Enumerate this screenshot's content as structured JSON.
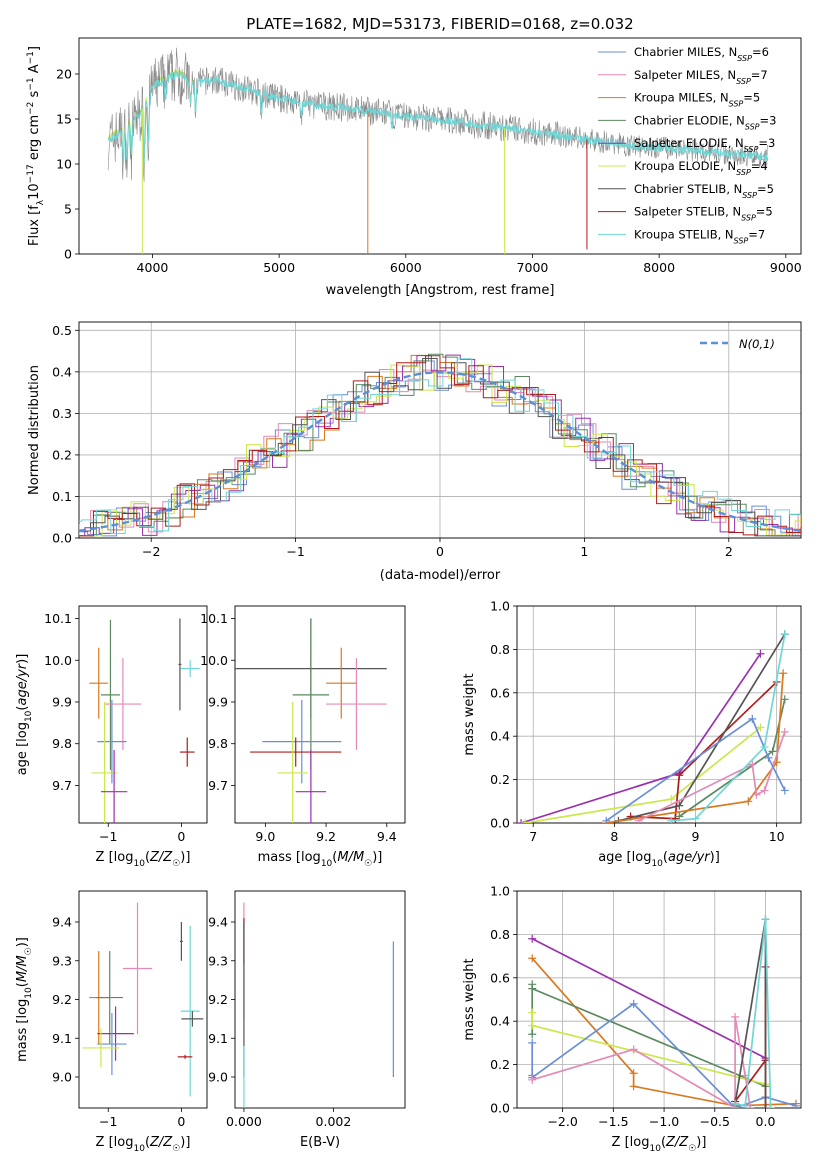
{
  "title": "PLATE=1682, MJD=53173, FIBERID=0168, z=0.032",
  "colors": {
    "Chabrier MILES": "#6a8fd6",
    "Salpeter MILES": "#e58ab6",
    "Kroupa MILES": "#d9781f",
    "Chabrier ELODIE": "#5b8a60",
    "Salpeter ELODIE": "#9b2fb0",
    "Kroupa ELODIE": "#cbe84b",
    "Chabrier STELIB": "#555555",
    "Salpeter STELIB": "#b01c1c",
    "Kroupa STELIB": "#6fd6d6",
    "fit": "#888888"
  },
  "chart_data": [
    {
      "id": "spectrum",
      "type": "line",
      "xlabel": "wavelength [Angstrom, rest frame]",
      "ylabel": "Flux [f_λ10^-17 erg cm^-2 s^-1 A^-1]",
      "xlim": [
        3420,
        9120
      ],
      "ylim": [
        0,
        24
      ],
      "xticks": [
        4000,
        5000,
        6000,
        7000,
        8000,
        9000
      ],
      "yticks": [
        0,
        5,
        10,
        15,
        20
      ],
      "grid": false,
      "legend": "upper right",
      "legend_entries": [
        {
          "name": "Chabrier MILES",
          "n_ssp": 6
        },
        {
          "name": "Salpeter MILES",
          "n_ssp": 7
        },
        {
          "name": "Kroupa MILES",
          "n_ssp": 5
        },
        {
          "name": "Chabrier ELODIE",
          "n_ssp": 3
        },
        {
          "name": "Salpeter ELODIE",
          "n_ssp": 3
        },
        {
          "name": "Kroupa ELODIE",
          "n_ssp": 4
        },
        {
          "name": "Chabrier STELIB",
          "n_ssp": 5
        },
        {
          "name": "Salpeter STELIB",
          "n_ssp": 5
        },
        {
          "name": "Kroupa STELIB",
          "n_ssp": 7
        }
      ],
      "continuum": [
        [
          3650,
          12.5
        ],
        [
          3750,
          13.5
        ],
        [
          3900,
          15.5
        ],
        [
          4000,
          18.5
        ],
        [
          4100,
          19.5
        ],
        [
          4200,
          20
        ],
        [
          4300,
          19
        ],
        [
          4500,
          19.3
        ],
        [
          4700,
          18.5
        ],
        [
          5000,
          17.3
        ],
        [
          5300,
          16.5
        ],
        [
          5500,
          16.3
        ],
        [
          5800,
          15.7
        ],
        [
          6000,
          15.3
        ],
        [
          6300,
          14.9
        ],
        [
          6600,
          14.3
        ],
        [
          7000,
          13.6
        ],
        [
          7400,
          12.8
        ],
        [
          7800,
          12
        ],
        [
          8200,
          11.6
        ],
        [
          8600,
          11.1
        ],
        [
          8850,
          10.8
        ]
      ],
      "spikes": [
        {
          "x": 3920,
          "y": 0,
          "series": "Kroupa ELODIE"
        },
        {
          "x": 5700,
          "y": 0,
          "series": "Kroupa MILES"
        },
        {
          "x": 6780,
          "y": 0,
          "series": "Kroupa ELODIE"
        },
        {
          "x": 7430,
          "y": 0.5,
          "series": "Salpeter STELIB"
        }
      ]
    },
    {
      "id": "residuals",
      "type": "histogram",
      "xlabel": "(data-model)/error",
      "ylabel": "Normed distribution",
      "xlim": [
        -2.5,
        2.5
      ],
      "ylim": [
        0,
        0.52
      ],
      "xticks": [
        -2,
        -1,
        0,
        1,
        2
      ],
      "yticks": [
        0,
        0.1,
        0.2,
        0.3,
        0.4,
        0.5
      ],
      "grid": true,
      "legend": "upper right",
      "reference_label": "N(0,1)",
      "bin_width": 0.1
    },
    {
      "id": "age_vs_Z",
      "type": "errorbar",
      "xlabel": "Z [log10(Z/Z☉)]",
      "ylabel": "age [log10(age/yr)]",
      "xlim": [
        -1.4,
        0.35
      ],
      "ylim": [
        9.61,
        10.13
      ],
      "xticks": [
        -1,
        0
      ],
      "yticks": [
        9.7,
        9.8,
        9.9,
        10.0,
        10.1
      ],
      "points": [
        {
          "series": "Kroupa MILES",
          "x": -1.13,
          "xerr": 0.13,
          "y": 9.945,
          "yerr": 0.085
        },
        {
          "series": "Chabrier ELODIE",
          "x": -0.97,
          "xerr": 0.13,
          "y": 9.917,
          "yerr": 0.18
        },
        {
          "series": "Salpeter MILES",
          "x": -0.8,
          "xerr": 0.25,
          "y": 9.895,
          "yerr": 0.11
        },
        {
          "series": "Chabrier MILES",
          "x": -0.95,
          "xerr": 0.2,
          "y": 9.805,
          "yerr": 0.1
        },
        {
          "series": "Kroupa ELODIE",
          "x": -1.05,
          "xerr": 0.18,
          "y": 9.73,
          "yerr": 0.17
        },
        {
          "series": "Salpeter ELODIE",
          "x": -0.92,
          "xerr": 0.18,
          "y": 9.685,
          "yerr": 0.1
        },
        {
          "series": "Chabrier STELIB",
          "x": -0.02,
          "xerr": 0.02,
          "y": 9.99,
          "yerr": 0.11
        },
        {
          "series": "Kroupa STELIB",
          "x": 0.12,
          "xerr": 0.13,
          "y": 9.98,
          "yerr": 0.02
        },
        {
          "series": "Salpeter STELIB",
          "x": 0.08,
          "xerr": 0.1,
          "y": 9.78,
          "yerr": 0.035
        }
      ]
    },
    {
      "id": "age_vs_mass",
      "type": "errorbar",
      "xlabel": "mass [log10(M/M☉)]",
      "ylabel": "",
      "xlim": [
        8.9,
        9.46
      ],
      "ylim": [
        9.61,
        10.13
      ],
      "xticks": [
        9.0,
        9.2,
        9.4
      ],
      "yticks": [
        9.7,
        9.8,
        9.9,
        10.0,
        10.1
      ],
      "points": [
        {
          "series": "Chabrier STELIB",
          "x": 9.15,
          "xerr": 0.25,
          "y": 9.98,
          "yerr": 0.12
        },
        {
          "series": "Kroupa MILES",
          "x": 9.25,
          "xerr": 0.05,
          "y": 9.945,
          "yerr": 0.085
        },
        {
          "series": "Chabrier ELODIE",
          "x": 9.15,
          "xerr": 0.06,
          "y": 9.917,
          "yerr": 0.18
        },
        {
          "series": "Salpeter MILES",
          "x": 9.3,
          "xerr": 0.1,
          "y": 9.895,
          "yerr": 0.11
        },
        {
          "series": "Chabrier MILES",
          "x": 9.12,
          "xerr": 0.13,
          "y": 9.805,
          "yerr": 0.1
        },
        {
          "series": "Salpeter STELIB",
          "x": 9.1,
          "xerr": 0.15,
          "y": 9.78,
          "yerr": 0.035
        },
        {
          "series": "Kroupa ELODIE",
          "x": 9.09,
          "xerr": 0.05,
          "y": 9.73,
          "yerr": 0.17
        },
        {
          "series": "Salpeter ELODIE",
          "x": 9.15,
          "xerr": 0.05,
          "y": 9.685,
          "yerr": 0.1
        }
      ]
    },
    {
      "id": "mass_weight_vs_age",
      "type": "line",
      "xlabel": "age [log10(age/yr)]",
      "ylabel": "mass weight",
      "xlim": [
        6.8,
        10.3
      ],
      "ylim": [
        0,
        1
      ],
      "xticks": [
        7,
        8,
        9,
        10
      ],
      "yticks": [
        0,
        0.2,
        0.4,
        0.6,
        0.8,
        1.0
      ],
      "grid": true,
      "series": [
        {
          "name": "Salpeter ELODIE",
          "points": [
            [
              6.85,
              0
            ],
            [
              8.8,
              0.23
            ],
            [
              9.8,
              0.78
            ]
          ]
        },
        {
          "name": "Kroupa ELODIE",
          "points": [
            [
              6.9,
              0
            ],
            [
              8.7,
              0.11
            ],
            [
              9.8,
              0.44
            ]
          ]
        },
        {
          "name": "Salpeter STELIB",
          "points": [
            [
              8.2,
              0.03
            ],
            [
              8.75,
              0.02
            ],
            [
              8.8,
              0.22
            ],
            [
              10,
              0.65
            ]
          ]
        },
        {
          "name": "Chabrier STELIB",
          "points": [
            [
              8.05,
              0.01
            ],
            [
              8.8,
              0.08
            ],
            [
              10.1,
              0.87
            ]
          ]
        },
        {
          "name": "Chabrier ELODIE",
          "points": [
            [
              8.8,
              0.03
            ],
            [
              9.95,
              0.33
            ],
            [
              10.1,
              0.57
            ]
          ]
        },
        {
          "name": "Kroupa MILES",
          "points": [
            [
              7.9,
              0
            ],
            [
              9.65,
              0.1
            ],
            [
              10,
              0.28
            ],
            [
              10.08,
              0.69
            ]
          ]
        },
        {
          "name": "Salpeter MILES",
          "points": [
            [
              8.3,
              0.01
            ],
            [
              9.7,
              0.27
            ],
            [
              9.75,
              0.13
            ],
            [
              9.85,
              0.15
            ],
            [
              10.1,
              0.42
            ]
          ]
        },
        {
          "name": "Chabrier MILES",
          "points": [
            [
              7.9,
              0.01
            ],
            [
              9.7,
              0.48
            ],
            [
              9.9,
              0.3
            ],
            [
              10.1,
              0.15
            ]
          ]
        },
        {
          "name": "Kroupa STELIB",
          "points": [
            [
              8.7,
              0.01
            ],
            [
              9.0,
              0.02
            ],
            [
              9.85,
              0.35
            ],
            [
              10.1,
              0.87
            ]
          ]
        }
      ]
    },
    {
      "id": "mass_vs_Z",
      "type": "errorbar",
      "xlabel": "Z [log10(Z/Z☉)]",
      "ylabel": "mass [log10(M/M☉)]",
      "xlim": [
        -1.4,
        0.35
      ],
      "ylim": [
        8.92,
        9.48
      ],
      "xticks": [
        -1,
        0
      ],
      "yticks": [
        9.0,
        9.1,
        9.2,
        9.3,
        9.4
      ],
      "points": [
        {
          "series": "Salpeter MILES",
          "x": -0.6,
          "xerr": 0.2,
          "y": 9.28,
          "yerr": 0.17
        },
        {
          "series": "Kroupa MILES",
          "x": -1.13,
          "xerr": 0.13,
          "y": 9.205,
          "yerr": 0.12
        },
        {
          "series": "Chabrier ELODIE",
          "x": -0.98,
          "xerr": 0.18,
          "y": 9.205,
          "yerr": 0.12
        },
        {
          "series": "Salpeter ELODIE",
          "x": -0.9,
          "xerr": 0.25,
          "y": 9.112,
          "yerr": 0.07
        },
        {
          "series": "Chabrier MILES",
          "x": -0.95,
          "xerr": 0.2,
          "y": 9.085,
          "yerr": 0.08
        },
        {
          "series": "Kroupa ELODIE",
          "x": -1.1,
          "xerr": 0.25,
          "y": 9.075,
          "yerr": 0.05
        },
        {
          "series": "Chabrier STELIB",
          "x": 0.0,
          "xerr": 0.02,
          "y": 9.35,
          "yerr": 0.05
        },
        {
          "series": "Kroupa STELIB",
          "x": 0.12,
          "xerr": 0.13,
          "y": 9.17,
          "yerr": 0.22
        },
        {
          "series": "Chabrier STELIB",
          "x": 0.15,
          "xerr": 0.15,
          "y": 9.15,
          "yerr": 0.02
        },
        {
          "series": "Salpeter STELIB",
          "x": 0.05,
          "xerr": 0.1,
          "y": 9.052,
          "yerr": 0.005
        }
      ]
    },
    {
      "id": "mass_vs_ebv",
      "type": "errorbar",
      "xlabel": "E(B-V)",
      "ylabel": "",
      "xlim": [
        -0.0002,
        0.0036
      ],
      "ylim": [
        8.92,
        9.48
      ],
      "xticks": [
        0.0,
        0.002
      ],
      "yticks": [
        9.0,
        9.1,
        9.2,
        9.3,
        9.4
      ],
      "points": [
        {
          "series": "Salpeter MILES",
          "x": 0.0,
          "xerr": 0,
          "y": 9.3,
          "yerr": 0.15
        },
        {
          "series": "Salpeter STELIB",
          "x": 0.0,
          "xerr": 0,
          "y": 9.35,
          "yerr": 0.06
        },
        {
          "series": "Chabrier STELIB",
          "x": 0.0,
          "xerr": 0,
          "y": 9.2,
          "yerr": 0.2
        },
        {
          "series": "Kroupa STELIB",
          "x": 0.0,
          "xerr": 0,
          "y": 9.0,
          "yerr": 0.08
        },
        {
          "series": "Chabrier MILES",
          "x": 0.00334,
          "xerr": 0,
          "y": 9.175,
          "yerr": 0.175
        }
      ]
    },
    {
      "id": "mass_weight_vs_Z",
      "type": "line",
      "xlabel": "Z [log10(Z/Z☉)]",
      "ylabel": "mass weight",
      "xlim": [
        -2.45,
        0.35
      ],
      "ylim": [
        0,
        1
      ],
      "xticks": [
        -2.0,
        -1.5,
        -1.0,
        -0.5,
        0.0
      ],
      "yticks": [
        0,
        0.2,
        0.4,
        0.6,
        0.8,
        1.0
      ],
      "grid": true,
      "series": [
        {
          "name": "Salpeter ELODIE",
          "points": [
            [
              -2.3,
              0.78
            ],
            [
              0,
              0.23
            ]
          ]
        },
        {
          "name": "Kroupa MILES",
          "points": [
            [
              -2.3,
              0.69
            ],
            [
              -1.3,
              0.16
            ],
            [
              -1.3,
              0.1
            ],
            [
              -0.3,
              0.01
            ],
            [
              0.3,
              0.02
            ]
          ]
        },
        {
          "name": "Chabrier ELODIE",
          "points": [
            [
              -2.3,
              0.57
            ],
            [
              -2.3,
              0.34
            ],
            [
              -2.3,
              0.55
            ],
            [
              0,
              0.1
            ]
          ]
        },
        {
          "name": "Kroupa ELODIE",
          "points": [
            [
              -2.3,
              0.44
            ],
            [
              -2.3,
              0.38
            ],
            [
              0,
              0.11
            ]
          ]
        },
        {
          "name": "Chabrier MILES",
          "points": [
            [
              -2.3,
              0.15
            ],
            [
              -2.3,
              0.3
            ],
            [
              -2.3,
              0.14
            ],
            [
              -1.3,
              0.48
            ],
            [
              -0.3,
              0
            ],
            [
              0,
              0.05
            ],
            [
              0.3,
              0.01
            ]
          ]
        },
        {
          "name": "Salpeter MILES",
          "points": [
            [
              -2.3,
              0.13
            ],
            [
              -1.3,
              0.27
            ],
            [
              -0.3,
              0
            ],
            [
              -0.3,
              0.42
            ],
            [
              -0.2,
              0.15
            ],
            [
              -0.15,
              0
            ]
          ]
        },
        {
          "name": "Salpeter STELIB",
          "points": [
            [
              -0.3,
              0.03
            ],
            [
              0,
              0.22
            ],
            [
              0,
              0.65
            ],
            [
              0,
              0
            ]
          ]
        },
        {
          "name": "Chabrier STELIB",
          "points": [
            [
              -0.3,
              0.02
            ],
            [
              0,
              0.87
            ],
            [
              0,
              0
            ]
          ]
        },
        {
          "name": "Kroupa STELIB",
          "points": [
            [
              -0.3,
              0.02
            ],
            [
              -0.2,
              0.01
            ],
            [
              0,
              0.87
            ],
            [
              0.05,
              0
            ]
          ]
        }
      ]
    }
  ]
}
